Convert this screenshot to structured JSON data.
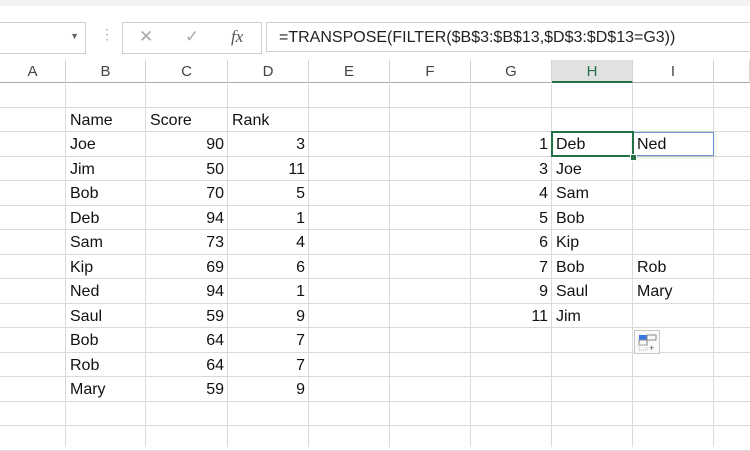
{
  "formula_bar": {
    "cancel_icon": "✕",
    "enter_icon": "✓",
    "fx_label": "fx",
    "formula": "=TRANSPOSE(FILTER($B$3:$B$13,$D$3:$D$13=G3))"
  },
  "columns": [
    "A",
    "B",
    "C",
    "D",
    "E",
    "F",
    "G",
    "H",
    "I"
  ],
  "selected_column": "H",
  "table": {
    "headers": [
      "Name",
      "Score",
      "Rank"
    ],
    "rows": [
      [
        "Joe",
        "90",
        "3"
      ],
      [
        "Jim",
        "50",
        "11"
      ],
      [
        "Bob",
        "70",
        "5"
      ],
      [
        "Deb",
        "94",
        "1"
      ],
      [
        "Sam",
        "73",
        "4"
      ],
      [
        "Kip",
        "69",
        "6"
      ],
      [
        "Ned",
        "94",
        "1"
      ],
      [
        "Saul",
        "59",
        "9"
      ],
      [
        "Bob",
        "64",
        "7"
      ],
      [
        "Rob",
        "64",
        "7"
      ],
      [
        "Mary",
        "59",
        "9"
      ]
    ]
  },
  "results": {
    "rows": [
      [
        "1",
        "Deb",
        "Ned"
      ],
      [
        "3",
        "Joe",
        ""
      ],
      [
        "4",
        "Sam",
        ""
      ],
      [
        "5",
        "Bob",
        ""
      ],
      [
        "6",
        "Kip",
        ""
      ],
      [
        "7",
        "Bob",
        "Rob"
      ],
      [
        "9",
        "Saul",
        "Mary"
      ],
      [
        "11",
        "Jim",
        ""
      ]
    ]
  },
  "colors": {
    "accent": "#217346",
    "spill_border": "#6b96d6"
  }
}
